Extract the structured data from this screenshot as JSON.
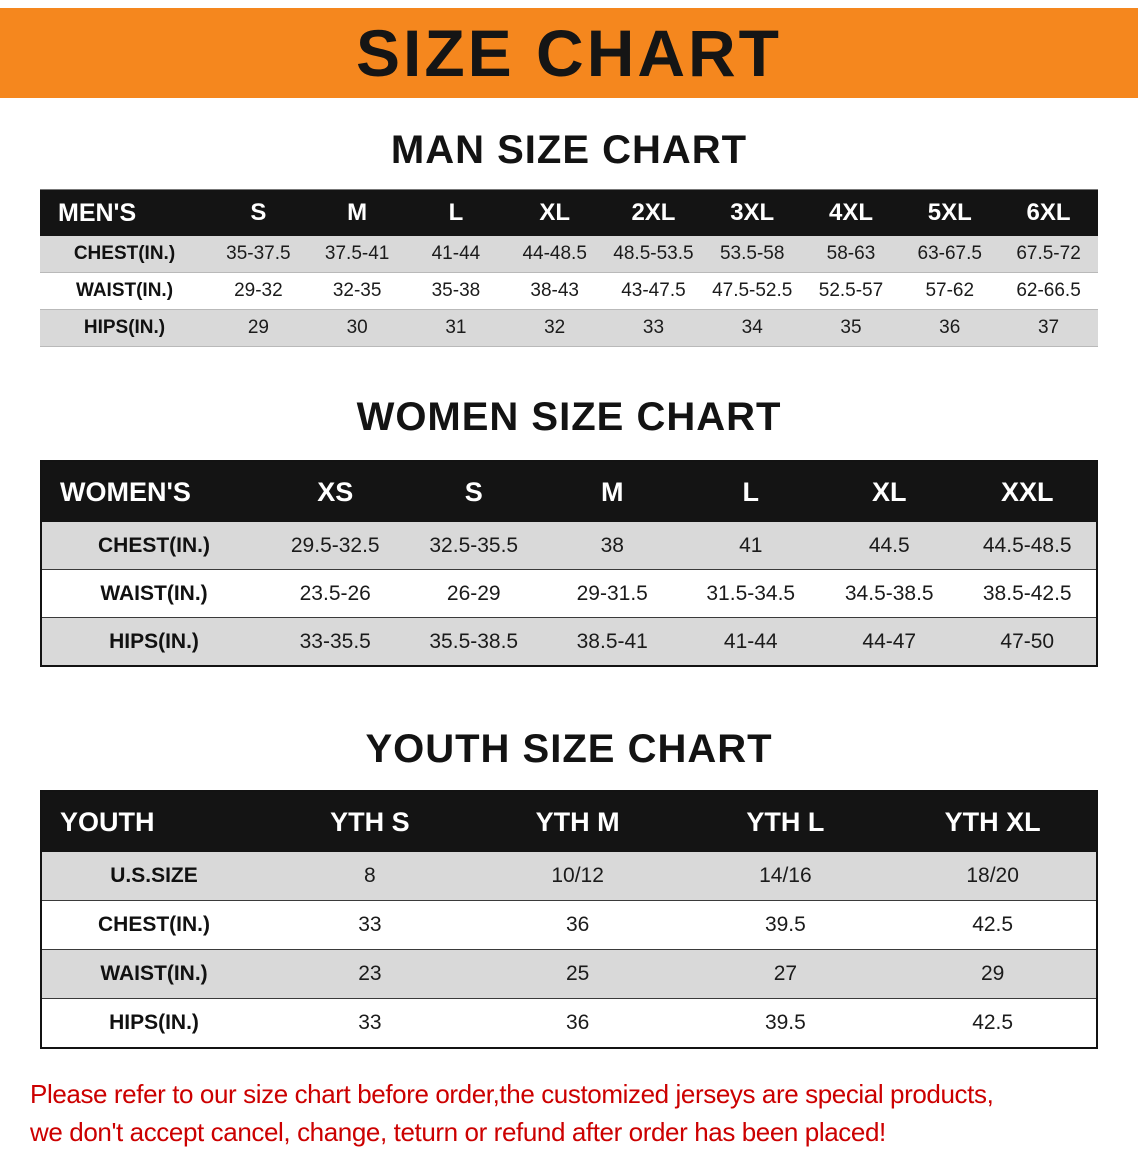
{
  "banner": {
    "title": "SIZE CHART",
    "bg_color": "#f5871e"
  },
  "sections": [
    {
      "heading": "MAN SIZE CHART",
      "table": {
        "corner": "MEN'S",
        "columns": [
          "S",
          "M",
          "L",
          "XL",
          "2XL",
          "3XL",
          "4XL",
          "5XL",
          "6XL"
        ],
        "rows": [
          {
            "label": "CHEST(IN.)",
            "values": [
              "35-37.5",
              "37.5-41",
              "41-44",
              "44-48.5",
              "48.5-53.5",
              "53.5-58",
              "58-63",
              "63-67.5",
              "67.5-72"
            ]
          },
          {
            "label": "WAIST(IN.)",
            "values": [
              "29-32",
              "32-35",
              "35-38",
              "38-43",
              "43-47.5",
              "47.5-52.5",
              "52.5-57",
              "57-62",
              "62-66.5"
            ]
          },
          {
            "label": "HIPS(IN.)",
            "values": [
              "29",
              "30",
              "31",
              "32",
              "33",
              "34",
              "35",
              "36",
              "37"
            ]
          }
        ]
      }
    },
    {
      "heading": "WOMEN SIZE CHART",
      "table": {
        "corner": "WOMEN'S",
        "columns": [
          "XS",
          "S",
          "M",
          "L",
          "XL",
          "XXL"
        ],
        "rows": [
          {
            "label": "CHEST(IN.)",
            "values": [
              "29.5-32.5",
              "32.5-35.5",
              "38",
              "41",
              "44.5",
              "44.5-48.5"
            ]
          },
          {
            "label": "WAIST(IN.)",
            "values": [
              "23.5-26",
              "26-29",
              "29-31.5",
              "31.5-34.5",
              "34.5-38.5",
              "38.5-42.5"
            ]
          },
          {
            "label": "HIPS(IN.)",
            "values": [
              "33-35.5",
              "35.5-38.5",
              "38.5-41",
              "41-44",
              "44-47",
              "47-50"
            ]
          }
        ]
      }
    },
    {
      "heading": "YOUTH SIZE CHART",
      "table": {
        "corner": "YOUTH",
        "columns": [
          "YTH S",
          "YTH M",
          "YTH L",
          "YTH XL"
        ],
        "rows": [
          {
            "label": "U.S.SIZE",
            "values": [
              "8",
              "10/12",
              "14/16",
              "18/20"
            ]
          },
          {
            "label": "CHEST(IN.)",
            "values": [
              "33",
              "36",
              "39.5",
              "42.5"
            ]
          },
          {
            "label": "WAIST(IN.)",
            "values": [
              "23",
              "25",
              "27",
              "29"
            ]
          },
          {
            "label": "HIPS(IN.)",
            "values": [
              "33",
              "36",
              "39.5",
              "42.5"
            ]
          }
        ]
      }
    }
  ],
  "footer": {
    "line1": "Please refer to our size chart before order,the customized jerseys are special products,",
    "line2": "we don't accept cancel, change, teturn or refund after order has been placed!",
    "color": "#cc0000"
  }
}
